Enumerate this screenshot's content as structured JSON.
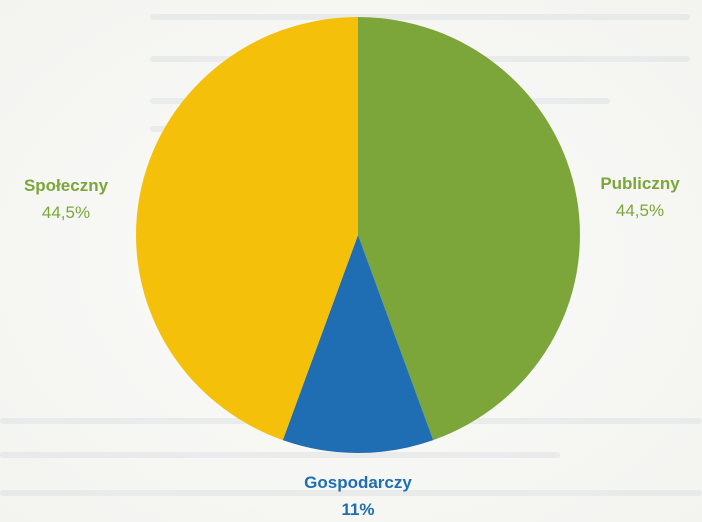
{
  "chart_data": {
    "type": "pie",
    "title": "",
    "slices": [
      {
        "label": "Publiczny",
        "value": 44.5,
        "value_label": "44,5%",
        "color": "#7ca63a",
        "text_color": "#7ca63a"
      },
      {
        "label": "Gospodarczy",
        "value": 11,
        "value_label": "11%",
        "color": "#1f6db3",
        "text_color": "#1f6db3"
      },
      {
        "label": "Społeczny",
        "value": 44.5,
        "value_label": "44,5%",
        "color": "#f5c009",
        "text_color": "#7ca63a"
      }
    ],
    "start_angle_deg": 0,
    "direction": "clockwise"
  }
}
